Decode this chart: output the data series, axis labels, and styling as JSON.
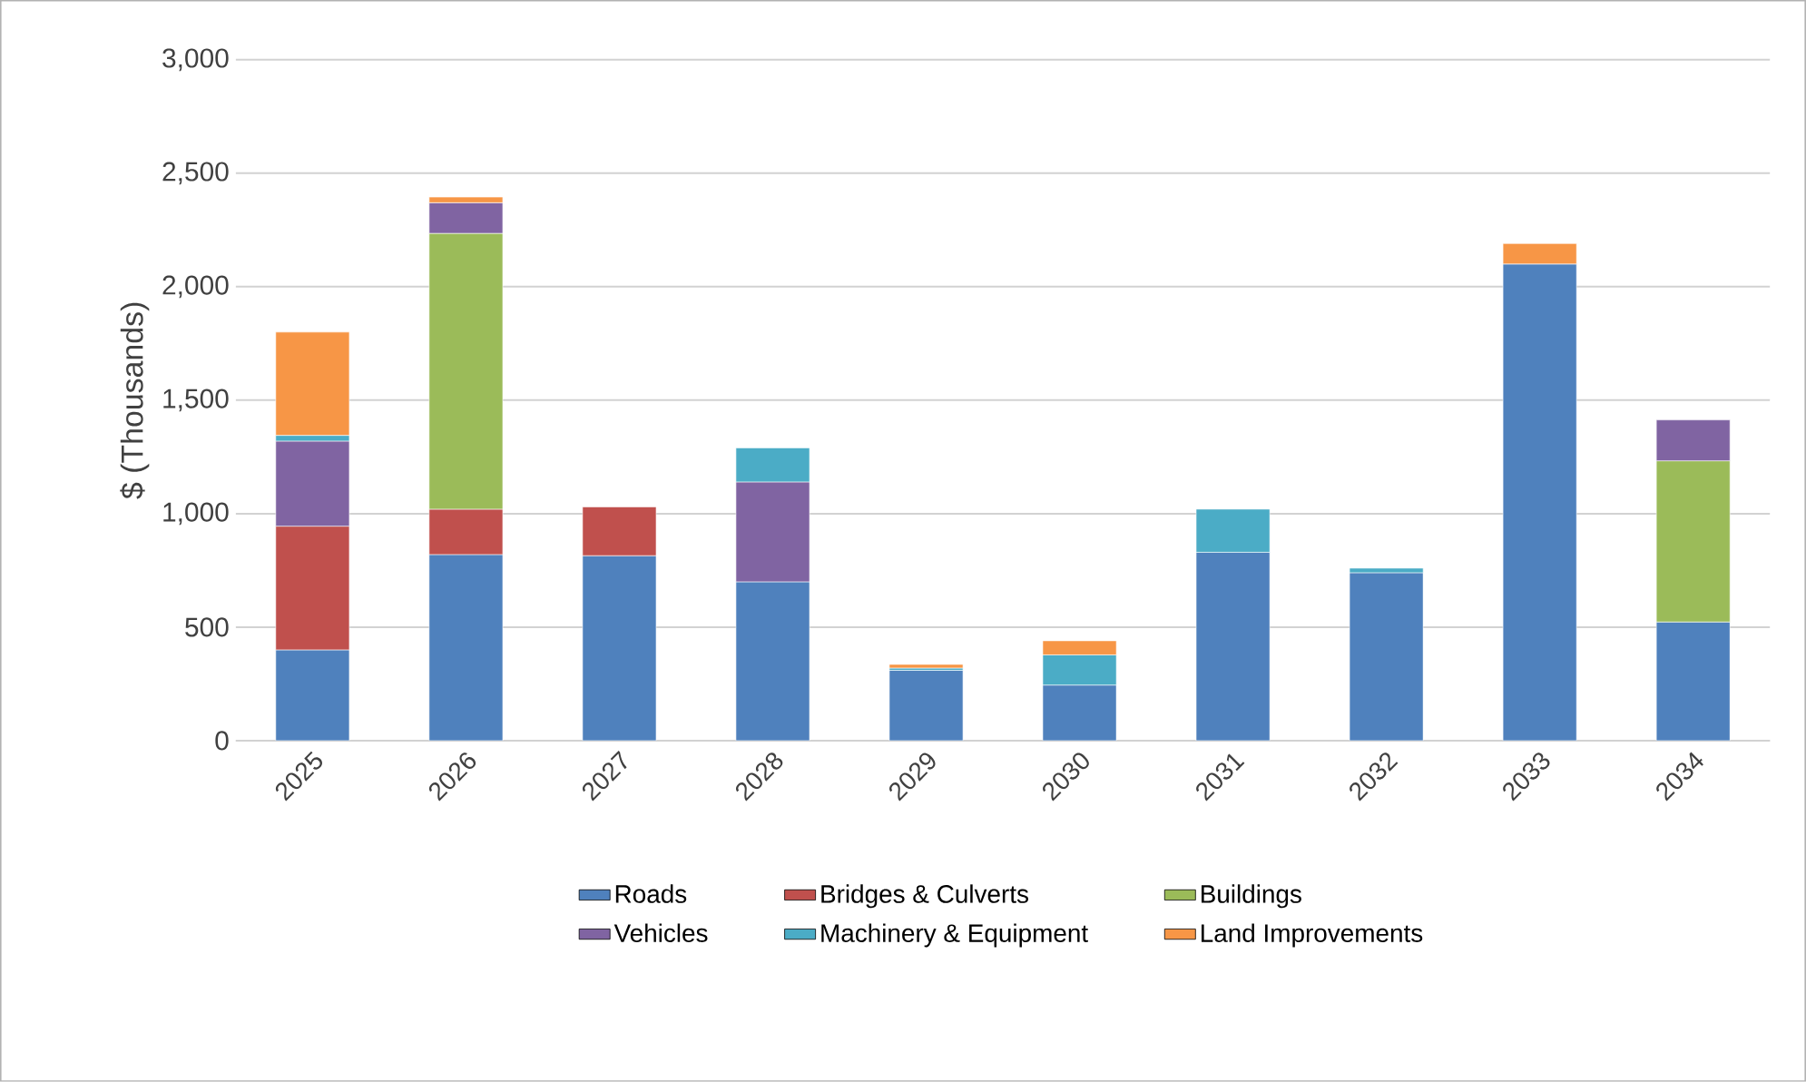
{
  "chart_data": {
    "type": "bar",
    "stacked": true,
    "ylabel": "$ (Thousands)",
    "categories": [
      "2025",
      "2026",
      "2027",
      "2028",
      "2029",
      "2030",
      "2031",
      "2032",
      "2033",
      "2034"
    ],
    "series": [
      {
        "name": "Roads",
        "color": "#4f81bd",
        "values": [
          400,
          820,
          815,
          700,
          310,
          245,
          830,
          740,
          2100,
          523
        ]
      },
      {
        "name": "Bridges & Culverts",
        "color": "#c0504d",
        "values": [
          545,
          200,
          215,
          null,
          null,
          null,
          null,
          null,
          null,
          null
        ]
      },
      {
        "name": "Buildings",
        "color": "#9bbb59",
        "values": [
          null,
          1215,
          null,
          null,
          null,
          null,
          null,
          null,
          null,
          710
        ]
      },
      {
        "name": "Vehicles",
        "color": "#8064a2",
        "values": [
          375,
          135,
          null,
          440,
          null,
          null,
          null,
          null,
          null,
          180
        ]
      },
      {
        "name": "Machinery & Equipment",
        "color": "#4bacc6",
        "values": [
          25,
          null,
          null,
          150,
          10,
          133,
          190,
          20,
          null,
          null
        ]
      },
      {
        "name": "Land Improvements",
        "color": "#f79646",
        "values": [
          455,
          25,
          null,
          null,
          16,
          62,
          null,
          null,
          90,
          null
        ]
      }
    ],
    "ylim": [
      0,
      3000
    ],
    "yticks": [
      0,
      500,
      {
        "value": 1000,
        "label": "1,000"
      },
      {
        "value": 1500,
        "label": "1,500"
      },
      {
        "value": 2000,
        "label": "2,000"
      },
      {
        "value": 2500,
        "label": "2,500"
      },
      {
        "value": 3000,
        "label": "3,000"
      }
    ],
    "grid": "y",
    "legend": "bottom"
  }
}
